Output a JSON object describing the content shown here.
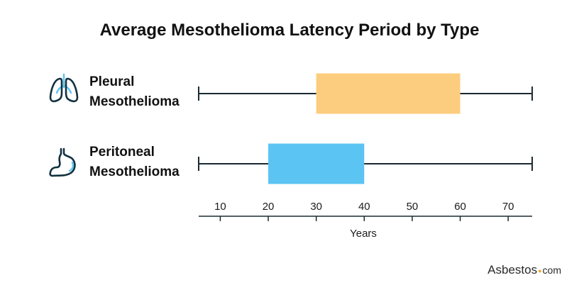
{
  "chart_data": {
    "type": "boxplot",
    "title": "Average Mesothelioma Latency Period by Type",
    "xlabel": "Years",
    "ylabel": "",
    "xlim": [
      5.5,
      75
    ],
    "xticks": [
      10,
      20,
      30,
      40,
      50,
      60,
      70
    ],
    "orientation": "horizontal",
    "grid": false,
    "categories": [
      {
        "label_lines": [
          "Pleural",
          "Mesothelioma"
        ],
        "icon": "lungs-icon",
        "whisker_low": 5.5,
        "box_low": 30,
        "box_high": 60,
        "whisker_high": 75,
        "color": "#FCCD7E"
      },
      {
        "label_lines": [
          "Peritoneal",
          "Mesothelioma"
        ],
        "icon": "stomach-icon",
        "whisker_low": 5.5,
        "box_low": 20,
        "box_high": 40,
        "whisker_high": 75,
        "color": "#5BC4F2"
      }
    ]
  },
  "brand": {
    "name": "Asbestos",
    "dot": "●",
    "suffix": "com",
    "dot_color": "#F5A623"
  },
  "colors": {
    "line": "#1b2a33",
    "icon_outline": "#123040",
    "icon_accent": "#5BC4F2"
  }
}
